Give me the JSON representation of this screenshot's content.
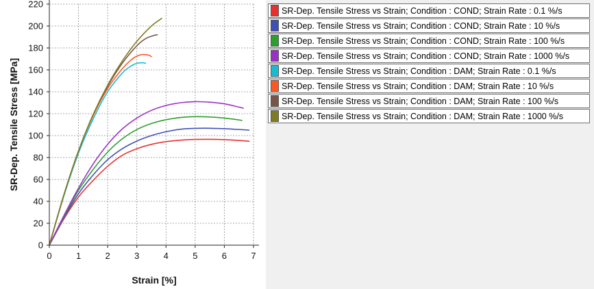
{
  "chart_data": {
    "type": "line",
    "xlabel": "Strain [%]",
    "ylabel": "SR-Dep. Tensile Stress [MPa]",
    "xlim": [
      0,
      7
    ],
    "ylim": [
      0,
      220
    ],
    "xticks": [
      "0",
      "1",
      "2",
      "3",
      "4",
      "5",
      "6",
      "7"
    ],
    "yticks": [
      "0",
      "20",
      "40",
      "60",
      "80",
      "100",
      "120",
      "140",
      "160",
      "180",
      "200",
      "220"
    ],
    "grid": true,
    "legend_position": "right",
    "series": [
      {
        "name": "SR-Dep. Tensile Stress vs Strain; Condition : COND;  Strain Rate : 0.1 %/s",
        "color": "#e8302f",
        "points": [
          [
            0,
            0
          ],
          [
            0.5,
            24
          ],
          [
            1,
            44
          ],
          [
            1.5,
            59
          ],
          [
            2,
            72
          ],
          [
            2.5,
            82
          ],
          [
            3,
            88
          ],
          [
            3.5,
            92
          ],
          [
            4,
            94.5
          ],
          [
            4.5,
            95.8
          ],
          [
            5,
            96.5
          ],
          [
            5.5,
            96.6
          ],
          [
            6,
            96.3
          ],
          [
            6.5,
            95.6
          ],
          [
            6.85,
            94.8
          ]
        ]
      },
      {
        "name": "SR-Dep. Tensile Stress vs Strain; Condition : COND;  Strain Rate : 10 %/s",
        "color": "#3f51b5",
        "points": [
          [
            0,
            0
          ],
          [
            0.5,
            25
          ],
          [
            1,
            47
          ],
          [
            1.5,
            64
          ],
          [
            2,
            78
          ],
          [
            2.5,
            88
          ],
          [
            3,
            95
          ],
          [
            3.5,
            100
          ],
          [
            4,
            103.5
          ],
          [
            4.5,
            105.8
          ],
          [
            5,
            106.6
          ],
          [
            5.5,
            106.7
          ],
          [
            6,
            106.3
          ],
          [
            6.5,
            105.6
          ],
          [
            6.85,
            105
          ]
        ]
      },
      {
        "name": "SR-Dep. Tensile Stress vs Strain; Condition : COND;  Strain Rate : 100 %/s",
        "color": "#2ca02c",
        "points": [
          [
            0,
            0
          ],
          [
            0.5,
            26
          ],
          [
            1,
            50
          ],
          [
            1.5,
            69
          ],
          [
            2,
            85
          ],
          [
            2.5,
            97
          ],
          [
            3,
            105.5
          ],
          [
            3.5,
            111
          ],
          [
            4,
            114.5
          ],
          [
            4.5,
            116.5
          ],
          [
            5,
            117.3
          ],
          [
            5.5,
            117
          ],
          [
            6,
            116
          ],
          [
            6.5,
            114.3
          ],
          [
            6.6,
            113.8
          ]
        ]
      },
      {
        "name": "SR-Dep. Tensile Stress vs Strain; Condition : COND;  Strain Rate : 1000 %/s",
        "color": "#9b30c8",
        "points": [
          [
            0,
            0
          ],
          [
            0.5,
            27
          ],
          [
            1,
            52
          ],
          [
            1.5,
            74
          ],
          [
            2,
            92
          ],
          [
            2.5,
            106
          ],
          [
            3,
            116
          ],
          [
            3.5,
            123
          ],
          [
            4,
            127.5
          ],
          [
            4.5,
            130
          ],
          [
            5,
            131
          ],
          [
            5.5,
            130.5
          ],
          [
            6,
            129
          ],
          [
            6.5,
            126
          ],
          [
            6.65,
            125
          ]
        ]
      },
      {
        "name": "SR-Dep. Tensile Stress vs Strain; Condition : DAM;  Strain Rate : 0.1 %/s",
        "color": "#17bcd2",
        "points": [
          [
            0,
            0
          ],
          [
            0.5,
            45
          ],
          [
            1,
            84
          ],
          [
            1.5,
            115
          ],
          [
            2,
            140
          ],
          [
            2.5,
            157
          ],
          [
            2.8,
            163.5
          ],
          [
            3,
            166
          ],
          [
            3.2,
            166.5
          ],
          [
            3.3,
            166
          ]
        ]
      },
      {
        "name": "SR-Dep. Tensile Stress vs Strain; Condition : DAM;  Strain Rate : 10 %/s",
        "color": "#ff5722",
        "points": [
          [
            0,
            0
          ],
          [
            0.5,
            46
          ],
          [
            1,
            86
          ],
          [
            1.5,
            118
          ],
          [
            2,
            143
          ],
          [
            2.5,
            161
          ],
          [
            2.8,
            169
          ],
          [
            3,
            172.5
          ],
          [
            3.2,
            174
          ],
          [
            3.4,
            173.5
          ],
          [
            3.5,
            172
          ]
        ]
      },
      {
        "name": "SR-Dep. Tensile Stress vs Strain; Condition : DAM;  Strain Rate : 100 %/s",
        "color": "#795548",
        "points": [
          [
            0,
            0
          ],
          [
            0.5,
            46
          ],
          [
            1,
            86
          ],
          [
            1.5,
            119
          ],
          [
            2,
            145
          ],
          [
            2.5,
            166
          ],
          [
            3,
            182
          ],
          [
            3.3,
            188.5
          ],
          [
            3.6,
            191.5
          ],
          [
            3.7,
            192
          ]
        ]
      },
      {
        "name": "SR-Dep. Tensile Stress vs Strain; Condition : DAM;  Strain Rate : 1000 %/s",
        "color": "#7e7c22",
        "points": [
          [
            0,
            0
          ],
          [
            0.5,
            46
          ],
          [
            1,
            86
          ],
          [
            1.5,
            119
          ],
          [
            2,
            146
          ],
          [
            2.5,
            168
          ],
          [
            3,
            186
          ],
          [
            3.5,
            200
          ],
          [
            3.8,
            206
          ],
          [
            3.85,
            207
          ]
        ]
      }
    ]
  }
}
